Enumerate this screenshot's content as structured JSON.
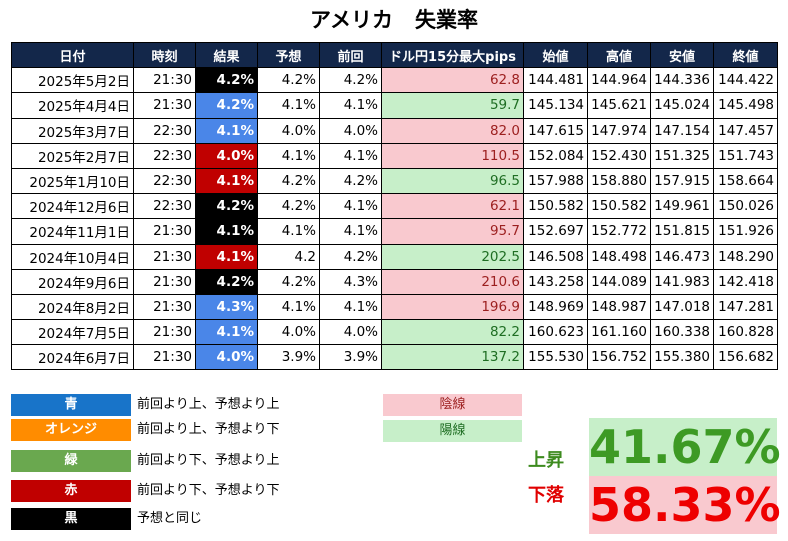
{
  "title": {
    "country": "アメリカ",
    "indicator": "失業率"
  },
  "table": {
    "headers": [
      "日付",
      "時刻",
      "結果",
      "予想",
      "前回",
      "ドル円15分最大pips",
      "始値",
      "高値",
      "安値",
      "終値"
    ],
    "rows": [
      {
        "date": "2025年5月2日",
        "time": "21:30",
        "result": "4.2%",
        "result_color": "black",
        "forecast": "4.2%",
        "previous": "4.2%",
        "pips": "62.8",
        "pips_type": "neg",
        "open": "144.481",
        "high": "144.964",
        "low": "144.336",
        "close": "144.422"
      },
      {
        "date": "2025年4月4日",
        "time": "21:30",
        "result": "4.2%",
        "result_color": "blue",
        "forecast": "4.1%",
        "previous": "4.1%",
        "pips": "59.7",
        "pips_type": "pos",
        "open": "145.134",
        "high": "145.621",
        "low": "145.024",
        "close": "145.498"
      },
      {
        "date": "2025年3月7日",
        "time": "22:30",
        "result": "4.1%",
        "result_color": "blue",
        "forecast": "4.0%",
        "previous": "4.0%",
        "pips": "82.0",
        "pips_type": "neg",
        "open": "147.615",
        "high": "147.974",
        "low": "147.154",
        "close": "147.457"
      },
      {
        "date": "2025年2月7日",
        "time": "22:30",
        "result": "4.0%",
        "result_color": "red",
        "forecast": "4.1%",
        "previous": "4.1%",
        "pips": "110.5",
        "pips_type": "neg",
        "open": "152.084",
        "high": "152.430",
        "low": "151.325",
        "close": "151.743"
      },
      {
        "date": "2025年1月10日",
        "time": "22:30",
        "result": "4.1%",
        "result_color": "red",
        "forecast": "4.2%",
        "previous": "4.2%",
        "pips": "96.5",
        "pips_type": "pos",
        "open": "157.988",
        "high": "158.880",
        "low": "157.915",
        "close": "158.664"
      },
      {
        "date": "2024年12月6日",
        "time": "22:30",
        "result": "4.2%",
        "result_color": "black",
        "forecast": "4.2%",
        "previous": "4.1%",
        "pips": "62.1",
        "pips_type": "neg",
        "open": "150.582",
        "high": "150.582",
        "low": "149.961",
        "close": "150.026"
      },
      {
        "date": "2024年11月1日",
        "time": "21:30",
        "result": "4.1%",
        "result_color": "black",
        "forecast": "4.1%",
        "previous": "4.1%",
        "pips": "95.7",
        "pips_type": "neg",
        "open": "152.697",
        "high": "152.772",
        "low": "151.815",
        "close": "151.926"
      },
      {
        "date": "2024年10月4日",
        "time": "21:30",
        "result": "4.1%",
        "result_color": "red",
        "forecast": "4.2",
        "previous": "4.2%",
        "pips": "202.5",
        "pips_type": "pos",
        "open": "146.508",
        "high": "148.498",
        "low": "146.473",
        "close": "148.290"
      },
      {
        "date": "2024年9月6日",
        "time": "21:30",
        "result": "4.2%",
        "result_color": "black",
        "forecast": "4.2%",
        "previous": "4.3%",
        "pips": "210.6",
        "pips_type": "neg",
        "open": "143.258",
        "high": "144.089",
        "low": "141.983",
        "close": "142.418"
      },
      {
        "date": "2024年8月2日",
        "time": "21:30",
        "result": "4.3%",
        "result_color": "blue",
        "forecast": "4.1%",
        "previous": "4.1%",
        "pips": "196.9",
        "pips_type": "neg",
        "open": "148.969",
        "high": "148.987",
        "low": "147.018",
        "close": "147.281"
      },
      {
        "date": "2024年7月5日",
        "time": "21:30",
        "result": "4.1%",
        "result_color": "blue",
        "forecast": "4.0%",
        "previous": "4.0%",
        "pips": "82.2",
        "pips_type": "pos",
        "open": "160.623",
        "high": "161.160",
        "low": "160.338",
        "close": "160.828"
      },
      {
        "date": "2024年6月7日",
        "time": "21:30",
        "result": "4.0%",
        "result_color": "blue",
        "forecast": "3.9%",
        "previous": "3.9%",
        "pips": "137.2",
        "pips_type": "pos",
        "open": "155.530",
        "high": "156.752",
        "low": "155.380",
        "close": "156.682"
      }
    ]
  },
  "legend": [
    {
      "label": "青",
      "color": "#1874c9",
      "description": "前回より上、予想より上"
    },
    {
      "label": "オレンジ",
      "color": "#ff8c00",
      "description": "前回より上、予想より下"
    },
    {
      "label": "緑",
      "color": "#6aa84f",
      "description": "前回より下、予想より上"
    },
    {
      "label": "赤",
      "color": "#c00000",
      "description": "前回より下、予想より下"
    },
    {
      "label": "黒",
      "color": "#000000",
      "description": "予想と同じ"
    }
  ],
  "candles": {
    "negative": "陰線",
    "positive": "陽線"
  },
  "stats": {
    "up_label": "上昇",
    "up_value": "41.67%",
    "down_label": "下落",
    "down_value": "58.33%"
  }
}
